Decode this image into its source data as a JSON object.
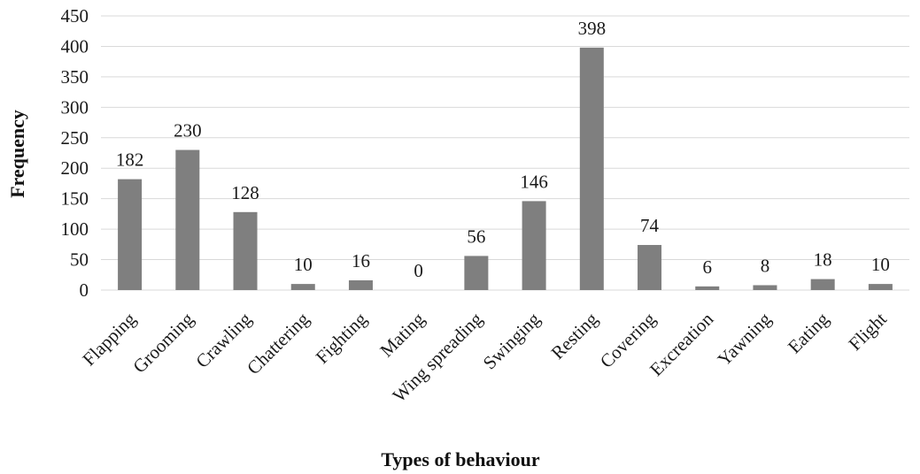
{
  "chart_data": {
    "type": "bar",
    "title": "",
    "xlabel": "Types of behaviour",
    "ylabel": "Frequency",
    "categories": [
      "Flapping",
      "Grooming",
      "Crawling",
      "Chattering",
      "Fighting",
      "Mating",
      "Wing spreading",
      "Swinging",
      "Resting",
      "Covering",
      "Excreation",
      "Yawning",
      "Eating",
      "Flight"
    ],
    "values": [
      182,
      230,
      128,
      10,
      16,
      0,
      56,
      146,
      398,
      74,
      6,
      8,
      18,
      10
    ],
    "data_labels": [
      "182",
      "230",
      "128",
      "10",
      "16",
      "0",
      "56",
      "146",
      "398",
      "74",
      "6",
      "8",
      "18",
      "10"
    ],
    "ylim": [
      0,
      450
    ],
    "yticks": [
      "0",
      "50",
      "100",
      "150",
      "200",
      "250",
      "300",
      "350",
      "400",
      "450"
    ],
    "grid": true,
    "legend": "none",
    "bar_color": "#7f7f7f"
  }
}
